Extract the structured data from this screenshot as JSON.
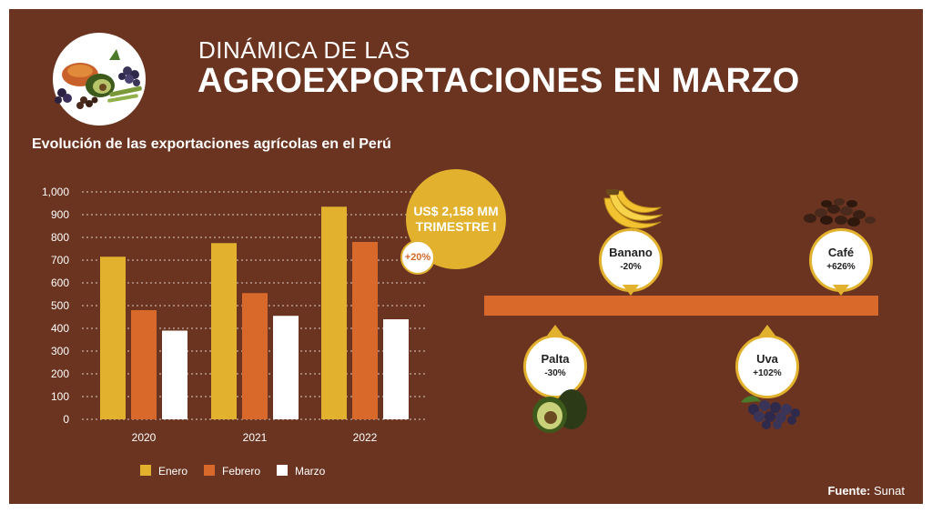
{
  "header": {
    "title_line1": "DINÁMICA DE LAS",
    "title_line2": "AGROEXPORTACIONES EN MARZO",
    "illustration": "fruits-and-vegetables-icon"
  },
  "subtitle": "Evolución de las exportaciones agrícolas en el Perú",
  "badge": {
    "line1": "US$ 2,158 MM",
    "line2": "TRIMESTRE I",
    "change": "+20%"
  },
  "products": [
    {
      "name": "Banano",
      "change": "-20%",
      "position": "top",
      "icon": "banana-icon"
    },
    {
      "name": "Café",
      "change": "+626%",
      "position": "top",
      "icon": "coffee-beans-icon"
    },
    {
      "name": "Palta",
      "change": "-30%",
      "position": "bottom",
      "icon": "avocado-icon"
    },
    {
      "name": "Uva",
      "change": "+102%",
      "position": "bottom",
      "icon": "grapes-icon"
    }
  ],
  "source": {
    "label": "Fuente:",
    "value": "Sunat"
  },
  "colors": {
    "background": "#6b3420",
    "enero": "#e2b22e",
    "febrero": "#d8692a",
    "marzo": "#ffffff",
    "timeline": "#d8692a"
  },
  "chart_data": {
    "type": "bar",
    "categories": [
      "2020",
      "2021",
      "2022"
    ],
    "series": [
      {
        "name": "Enero",
        "values": [
          715,
          775,
          935
        ],
        "color": "#e2b22e"
      },
      {
        "name": "Febrero",
        "values": [
          480,
          555,
          780
        ],
        "color": "#d8692a"
      },
      {
        "name": "Marzo",
        "values": [
          390,
          455,
          440
        ],
        "color": "#ffffff"
      }
    ],
    "yticks": [
      "0",
      "100",
      "200",
      "300",
      "400",
      "500",
      "600",
      "700",
      "800",
      "900",
      "1,000"
    ],
    "ylim": [
      0,
      1000
    ],
    "grid": true,
    "legend": "bottom"
  }
}
